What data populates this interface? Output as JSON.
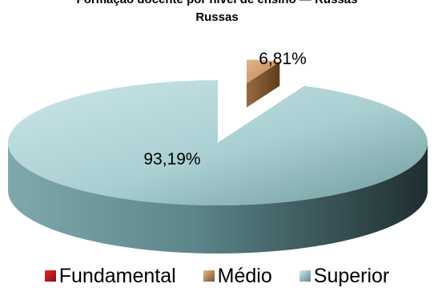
{
  "chart_data": {
    "type": "pie",
    "title": "Formação docente por nível de ensino — Russas",
    "subtitle": "Russas",
    "slices": [
      {
        "name": "Fundamental",
        "value": 0,
        "label": "",
        "color": "#c0121a"
      },
      {
        "name": "Médio",
        "value": 6.81,
        "label": "6,81%",
        "color": "#c6956a"
      },
      {
        "name": "Superior",
        "value": 93.19,
        "label": "93,19%",
        "color": "#aed3d6"
      }
    ],
    "legend_position": "bottom"
  }
}
